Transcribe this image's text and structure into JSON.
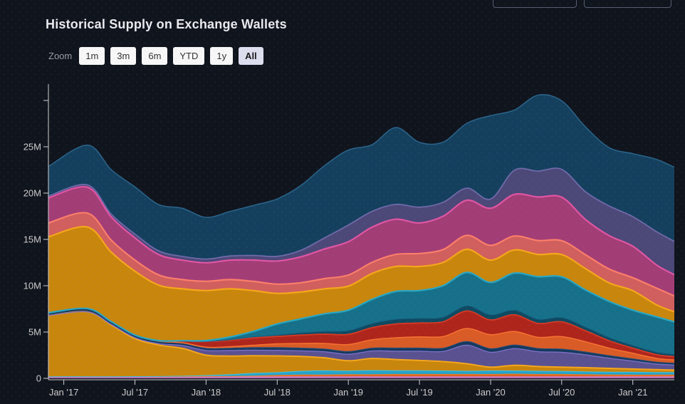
{
  "header": {
    "title": "Historical Supply on Exchange Wallets"
  },
  "toolbar": {
    "zoom_label": "Zoom",
    "buttons": [
      {
        "label": "1m",
        "selected": false
      },
      {
        "label": "3m",
        "selected": false
      },
      {
        "label": "6m",
        "selected": false
      },
      {
        "label": "YTD",
        "selected": false
      },
      {
        "label": "1y",
        "selected": false
      },
      {
        "label": "All",
        "selected": true
      }
    ]
  },
  "chart_data": {
    "type": "area",
    "stacked": true,
    "grid": false,
    "legend": "none",
    "title": "Historical Supply on Exchange Wallets",
    "xlabel": "",
    "ylabel": "",
    "unit": "M",
    "x_range_months": [
      -1.3,
      51.5
    ],
    "ylim": [
      0,
      32
    ],
    "x_ticks": [
      {
        "label": "Jan '17",
        "month": 0
      },
      {
        "label": "Jul '17",
        "month": 6
      },
      {
        "label": "Jan '18",
        "month": 12
      },
      {
        "label": "Jul '18",
        "month": 18
      },
      {
        "label": "Jan '19",
        "month": 24
      },
      {
        "label": "Jul '19",
        "month": 30
      },
      {
        "label": "Jan '20",
        "month": 36
      },
      {
        "label": "Jul '20",
        "month": 42
      },
      {
        "label": "Jan '21",
        "month": 48
      }
    ],
    "y_ticks": [
      {
        "label": "0",
        "value": 0
      },
      {
        "label": "5M",
        "value": 5
      },
      {
        "label": "10M",
        "value": 10
      },
      {
        "label": "15M",
        "value": 15
      },
      {
        "label": "20M",
        "value": 20
      },
      {
        "label": "25M",
        "value": 25
      },
      {
        "label": "",
        "value": 30
      }
    ],
    "axis_color": "#cfcfcf",
    "label_color": "#cbcbcb",
    "months": [
      -1.3,
      2,
      4,
      6,
      8,
      10,
      12,
      14,
      16,
      18,
      20,
      22,
      24,
      26,
      28,
      30,
      32,
      34,
      36,
      38,
      40,
      42,
      44,
      46,
      48,
      50,
      51.5
    ],
    "series": [
      {
        "name": "orchid-bottom",
        "fill": "#b565b0",
        "line": "#d98ad0",
        "lw": 1,
        "values": [
          0.18,
          0.18,
          0.17,
          0.17,
          0.16,
          0.16,
          0.16,
          0.16,
          0.16,
          0.17,
          0.17,
          0.17,
          0.18,
          0.18,
          0.18,
          0.18,
          0.18,
          0.18,
          0.18,
          0.18,
          0.18,
          0.18,
          0.18,
          0.18,
          0.18,
          0.18,
          0.18
        ]
      },
      {
        "name": "orange-thin",
        "fill": "#d9641e",
        "line": "#f07e2d",
        "lw": 1,
        "values": [
          0,
          0,
          0,
          0.02,
          0.02,
          0.03,
          0.05,
          0.05,
          0.08,
          0.15,
          0.2,
          0.2,
          0.22,
          0.22,
          0.25,
          0.25,
          0.25,
          0.25,
          0.25,
          0.28,
          0.25,
          0.25,
          0.22,
          0.2,
          0.18,
          0.18,
          0.18
        ]
      },
      {
        "name": "cyan-thin",
        "fill": "#25a3c9",
        "line": "#3fc3e8",
        "lw": 1,
        "values": [
          0,
          0,
          0,
          0,
          0.02,
          0.05,
          0.1,
          0.2,
          0.3,
          0.3,
          0.4,
          0.45,
          0.4,
          0.45,
          0.4,
          0.4,
          0.38,
          0.35,
          0.38,
          0.35,
          0.35,
          0.33,
          0.3,
          0.3,
          0.3,
          0.28,
          0.28
        ]
      },
      {
        "name": "gold-declining",
        "fill": "#c8860d",
        "line": "#f5a71b",
        "lw": 2,
        "values": [
          6.6,
          7.0,
          5.6,
          4.1,
          3.4,
          3.0,
          2.2,
          2.0,
          1.9,
          1.8,
          1.6,
          1.4,
          1.1,
          1.3,
          1.2,
          1.1,
          1.0,
          0.8,
          0.4,
          0.6,
          0.5,
          0.45,
          0.45,
          0.4,
          0.35,
          0.3,
          0.25
        ]
      },
      {
        "name": "purple-medium",
        "fill": "#5a5190",
        "line": "#7b6fc4",
        "lw": 1.4,
        "values": [
          0,
          0,
          0.05,
          0.1,
          0.15,
          0.3,
          0.5,
          0.6,
          0.6,
          0.6,
          0.6,
          0.65,
          0.7,
          0.8,
          0.9,
          1.0,
          1.1,
          2.0,
          1.6,
          1.8,
          1.6,
          1.6,
          1.4,
          1.1,
          0.85,
          0.6,
          0.55
        ]
      },
      {
        "name": "navy-thin",
        "fill": "#16395d",
        "line": "#274f7a",
        "lw": 1,
        "values": [
          0.3,
          0.35,
          0.3,
          0.28,
          0.25,
          0.25,
          0.25,
          0.25,
          0.28,
          0.3,
          0.3,
          0.3,
          0.3,
          0.32,
          0.35,
          0.35,
          0.35,
          0.4,
          0.4,
          0.4,
          0.35,
          0.35,
          0.3,
          0.28,
          0.25,
          0.22,
          0.2
        ]
      },
      {
        "name": "orange-big",
        "fill": "#d95b25",
        "line": "#f57031",
        "lw": 1.6,
        "values": [
          0,
          0,
          0,
          0,
          0.02,
          0.05,
          0.1,
          0.15,
          0.25,
          0.4,
          0.5,
          0.6,
          0.75,
          0.9,
          1.1,
          1.2,
          1.25,
          1.4,
          1.5,
          1.45,
          1.2,
          1.35,
          1.1,
          0.8,
          0.6,
          0.4,
          0.35
        ]
      },
      {
        "name": "red-big",
        "fill": "#ae251c",
        "line": "#d63a25",
        "lw": 1.8,
        "values": [
          0,
          0,
          0,
          0,
          0.05,
          0.2,
          0.6,
          0.7,
          0.8,
          0.8,
          0.9,
          1.0,
          1.1,
          1.3,
          1.5,
          1.5,
          1.6,
          1.9,
          1.6,
          1.8,
          1.5,
          1.6,
          1.2,
          0.8,
          0.55,
          0.4,
          0.35
        ]
      },
      {
        "name": "darkteal-thin",
        "fill": "#0e4a61",
        "line": "#176084",
        "lw": 1,
        "values": [
          0,
          0,
          0,
          0,
          0,
          0,
          0.02,
          0.05,
          0.1,
          0.15,
          0.25,
          0.3,
          0.4,
          0.45,
          0.5,
          0.5,
          0.5,
          0.55,
          0.55,
          0.5,
          0.45,
          0.45,
          0.4,
          0.35,
          0.3,
          0.28,
          0.25
        ]
      },
      {
        "name": "teal-big",
        "fill": "#177089",
        "line": "#29a7c4",
        "lw": 2.2,
        "values": [
          0,
          0,
          0,
          0,
          0,
          0.02,
          0.1,
          0.3,
          0.6,
          1.2,
          1.5,
          1.9,
          2.2,
          2.6,
          3.0,
          3.0,
          3.4,
          3.6,
          3.5,
          4.0,
          4.6,
          4.4,
          4.0,
          3.9,
          3.8,
          3.8,
          3.5
        ]
      },
      {
        "name": "amber-big",
        "fill": "#c8860d",
        "line": "#f5a71b",
        "lw": 2.2,
        "values": [
          8.2,
          8.8,
          7.5,
          6.9,
          6.0,
          5.6,
          5.4,
          5.2,
          4.4,
          3.3,
          2.9,
          2.7,
          2.6,
          2.8,
          2.7,
          2.6,
          2.5,
          2.5,
          2.4,
          2.5,
          2.4,
          2.4,
          2.3,
          2.0,
          2.1,
          1.3,
          1.1
        ]
      },
      {
        "name": "salmon",
        "fill": "#d05f5e",
        "line": "#fb7e6a",
        "lw": 2.2,
        "values": [
          1.5,
          1.5,
          1.3,
          1.2,
          1.1,
          1.0,
          1.0,
          1.0,
          1.0,
          1.0,
          1.0,
          1.1,
          1.2,
          1.2,
          1.3,
          1.4,
          1.4,
          1.5,
          1.6,
          1.5,
          1.5,
          1.5,
          1.5,
          1.5,
          1.4,
          1.8,
          1.7
        ]
      },
      {
        "name": "magenta",
        "fill": "#a23d76",
        "line": "#e055a2",
        "lw": 2.2,
        "values": [
          2.7,
          2.8,
          2.5,
          2.4,
          2.2,
          2.1,
          2.0,
          2.1,
          2.3,
          2.5,
          2.8,
          3.2,
          3.6,
          3.8,
          3.8,
          3.3,
          3.6,
          3.8,
          4.0,
          4.5,
          4.7,
          4.7,
          3.8,
          3.6,
          3.4,
          2.5,
          2.3
        ]
      },
      {
        "name": "purple-dark",
        "fill": "#4c4878",
        "line": "#6f69a8",
        "lw": 1.8,
        "values": [
          0.2,
          0.25,
          0.3,
          0.4,
          0.4,
          0.4,
          0.4,
          0.45,
          0.5,
          0.5,
          0.7,
          1.2,
          1.8,
          1.7,
          1.6,
          1.7,
          1.5,
          1.3,
          1.0,
          2.6,
          2.8,
          3.0,
          3.0,
          3.2,
          3.2,
          3.6,
          3.6
        ]
      },
      {
        "name": "navy-top",
        "fill": "#14405e",
        "line": "#2a6287",
        "lw": 1.6,
        "values": [
          3.2,
          4.3,
          4.8,
          5.1,
          5.0,
          5.2,
          4.5,
          4.8,
          5.4,
          6.2,
          7.0,
          7.8,
          8.1,
          7.2,
          8.3,
          7.0,
          6.5,
          7.0,
          9.0,
          6.5,
          8.2,
          7.4,
          7.0,
          6.3,
          6.8,
          7.8,
          8.0
        ]
      }
    ]
  }
}
